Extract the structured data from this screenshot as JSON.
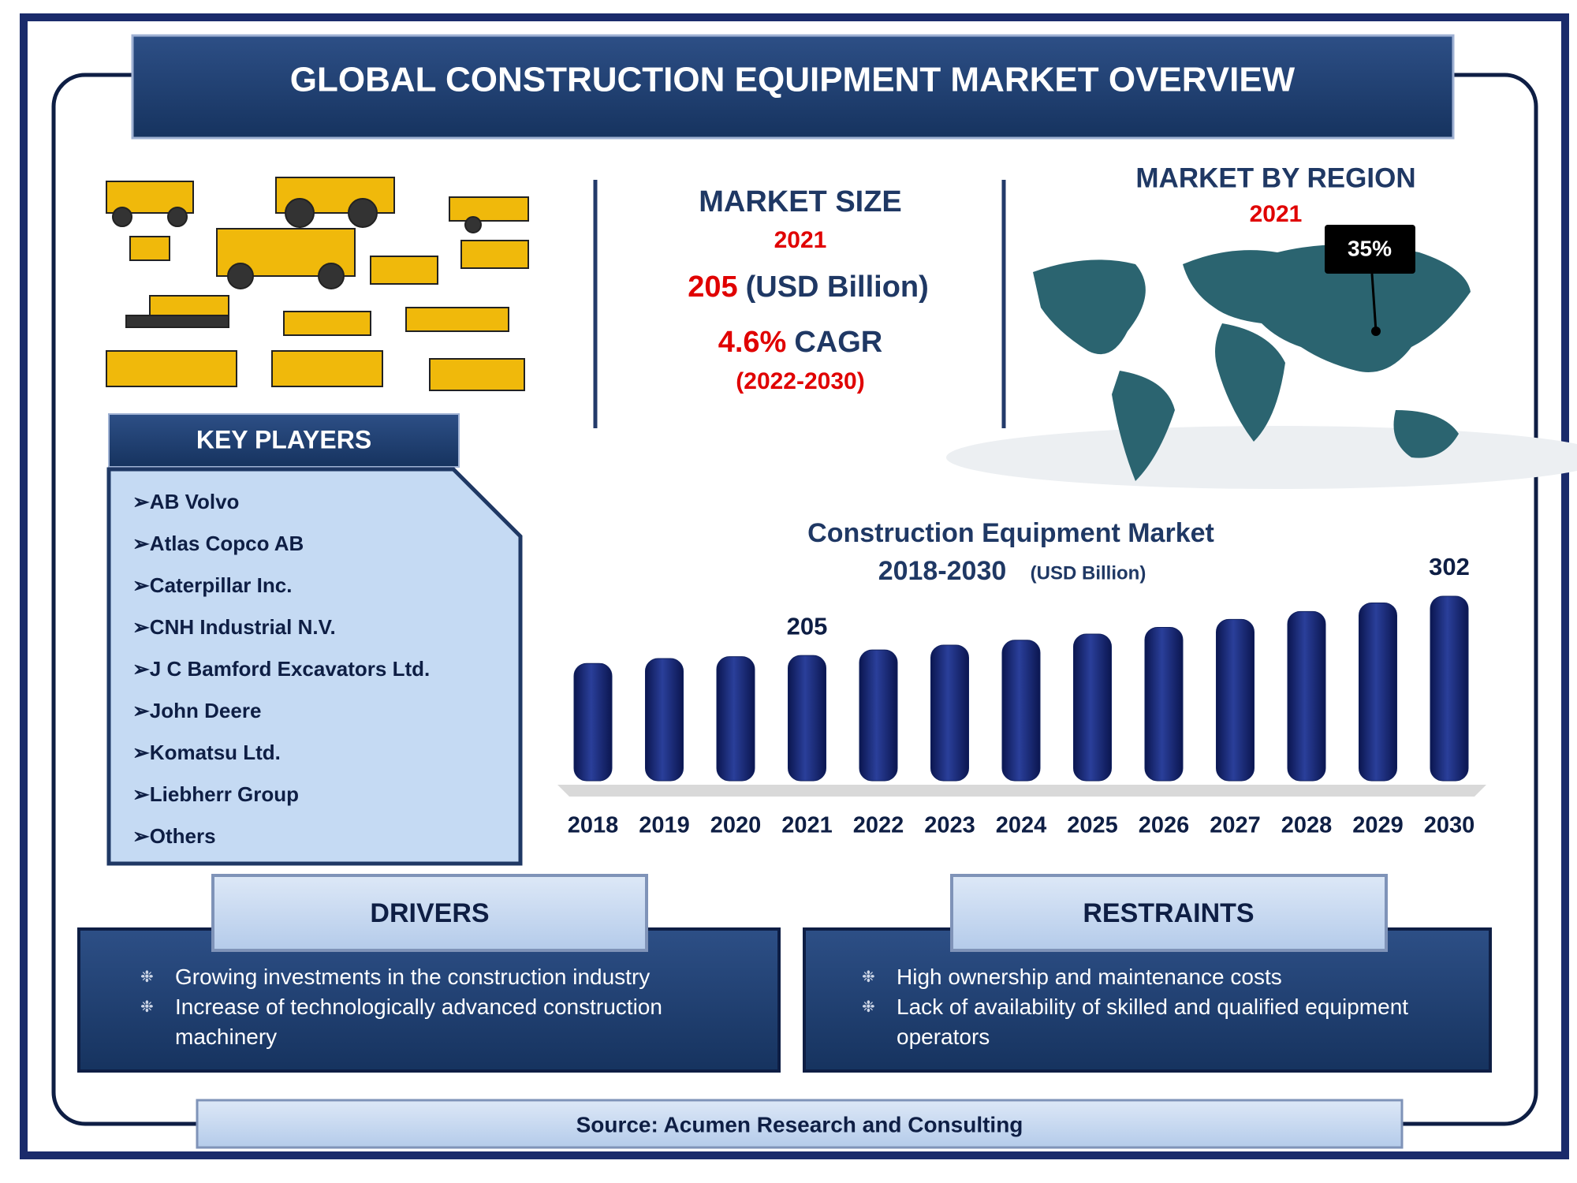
{
  "header": {
    "title": "GLOBAL CONSTRUCTION EQUIPMENT MARKET OVERVIEW"
  },
  "market_size": {
    "title": "MARKET SIZE",
    "year": "2021",
    "value": "205",
    "unit": "(USD Billion)",
    "cagr": "4.6%",
    "cagr_label": "CAGR",
    "period": "(2022-2030)"
  },
  "region": {
    "title": "MARKET BY REGION",
    "year": "2021",
    "callout": "35%"
  },
  "key_players": {
    "title": "KEY PLAYERS",
    "items": [
      "AB Volvo",
      "Atlas Copco AB",
      "Caterpillar Inc.",
      "CNH Industrial N.V.",
      "J C Bamford Excavators Ltd.",
      "John Deere",
      "Komatsu Ltd.",
      "Liebherr Group",
      "Others"
    ]
  },
  "chart_data": {
    "type": "bar",
    "title": "Construction Equipment Market",
    "subtitle": "2018-2030",
    "unit": "(USD Billion)",
    "categories": [
      "2018",
      "2019",
      "2020",
      "2021",
      "2022",
      "2023",
      "2024",
      "2025",
      "2026",
      "2027",
      "2028",
      "2029",
      "2030"
    ],
    "values": [
      192,
      200,
      203,
      205,
      214,
      222,
      230,
      240,
      251,
      264,
      277,
      291,
      302
    ],
    "value_labels": [
      null,
      null,
      null,
      "205",
      null,
      null,
      null,
      null,
      null,
      null,
      null,
      null,
      "302"
    ],
    "color": "#10205e"
  },
  "drivers": {
    "title": "DRIVERS",
    "items": [
      "Growing investments in the construction industry",
      "Increase of technologically advanced construction machinery"
    ]
  },
  "restraints": {
    "title": "RESTRAINTS",
    "items": [
      "High ownership and maintenance costs",
      "Lack of availability of skilled and qualified equipment operators"
    ]
  },
  "source": "Source: Acumen Research and Consulting"
}
